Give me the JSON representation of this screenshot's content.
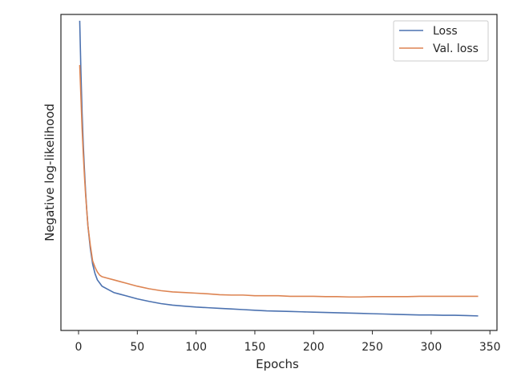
{
  "chart_data": {
    "type": "line",
    "xlabel": "Epochs",
    "ylabel": "Negative log-likelihood",
    "xlim": [
      -15,
      356
    ],
    "ylim": [
      0.0,
      1.0
    ],
    "y_tick_labels_shown": false,
    "x_ticks": [
      0,
      50,
      100,
      150,
      200,
      250,
      300,
      350
    ],
    "x_tick_labels": [
      "0",
      "50",
      "100",
      "150",
      "200",
      "250",
      "300",
      "350"
    ],
    "grid": false,
    "legend_position": "top-right",
    "series": [
      {
        "name": "Loss",
        "color": "#4c72b0",
        "x": [
          1,
          2,
          3,
          4,
          5,
          6,
          7,
          8,
          10,
          12,
          14,
          16,
          18,
          20,
          25,
          30,
          35,
          40,
          50,
          60,
          70,
          80,
          90,
          100,
          110,
          120,
          130,
          140,
          150,
          160,
          170,
          180,
          190,
          200,
          210,
          220,
          230,
          240,
          250,
          260,
          270,
          280,
          290,
          300,
          310,
          320,
          330,
          340
        ],
        "y": [
          0.98,
          0.82,
          0.69,
          0.59,
          0.51,
          0.44,
          0.38,
          0.33,
          0.26,
          0.21,
          0.18,
          0.16,
          0.15,
          0.14,
          0.13,
          0.12,
          0.115,
          0.11,
          0.1,
          0.092,
          0.085,
          0.08,
          0.077,
          0.074,
          0.072,
          0.07,
          0.068,
          0.066,
          0.064,
          0.062,
          0.061,
          0.06,
          0.059,
          0.058,
          0.057,
          0.056,
          0.055,
          0.054,
          0.053,
          0.052,
          0.051,
          0.05,
          0.049,
          0.049,
          0.048,
          0.048,
          0.047,
          0.046
        ]
      },
      {
        "name": "Val. loss",
        "color": "#dd8452",
        "x": [
          1,
          2,
          3,
          4,
          5,
          6,
          7,
          8,
          10,
          12,
          14,
          16,
          18,
          20,
          25,
          30,
          35,
          40,
          50,
          60,
          70,
          80,
          90,
          100,
          110,
          120,
          130,
          140,
          150,
          160,
          170,
          180,
          190,
          200,
          210,
          220,
          230,
          240,
          250,
          260,
          270,
          280,
          290,
          300,
          310,
          320,
          330,
          340
        ],
        "y": [
          0.84,
          0.74,
          0.64,
          0.56,
          0.49,
          0.43,
          0.38,
          0.33,
          0.27,
          0.22,
          0.2,
          0.185,
          0.175,
          0.17,
          0.165,
          0.16,
          0.155,
          0.15,
          0.14,
          0.132,
          0.126,
          0.122,
          0.12,
          0.118,
          0.116,
          0.113,
          0.112,
          0.112,
          0.11,
          0.11,
          0.11,
          0.108,
          0.108,
          0.108,
          0.107,
          0.107,
          0.106,
          0.106,
          0.107,
          0.107,
          0.107,
          0.107,
          0.108,
          0.108,
          0.108,
          0.108,
          0.108,
          0.108
        ]
      }
    ]
  }
}
